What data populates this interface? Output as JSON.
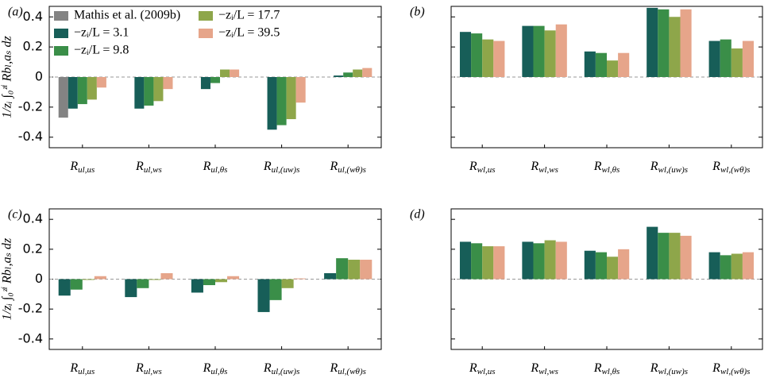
{
  "chart_data": [
    {
      "type": "bar",
      "panel_label": "(a)",
      "y_label": "1/zᵢ ∫₀ᶻⁱ Rbₗ,aₛ dz",
      "legend": "upper left",
      "categories": [
        "Rul,us",
        "Rul,ws",
        "Rul,θs",
        "Rul,(uw)s",
        "Rul,(wθ)s"
      ],
      "series": [
        {
          "name": "Mathis et al. (2009b)",
          "color": "#838383",
          "values": [
            -0.27,
            null,
            null,
            null,
            null
          ]
        },
        {
          "name": "−zᵢ/L = 3.1",
          "color": "#175e58",
          "values": [
            -0.21,
            -0.21,
            -0.08,
            -0.35,
            0.01
          ]
        },
        {
          "name": "−zᵢ/L = 9.8",
          "color": "#3a8e48",
          "values": [
            -0.18,
            -0.19,
            -0.04,
            -0.32,
            0.03
          ]
        },
        {
          "name": "−zᵢ/L = 17.7",
          "color": "#8ea64a",
          "values": [
            -0.15,
            -0.16,
            0.05,
            -0.28,
            0.05
          ]
        },
        {
          "name": "−zᵢ/L = 39.5",
          "color": "#e6a58a",
          "values": [
            -0.07,
            -0.08,
            0.05,
            -0.17,
            0.06
          ]
        }
      ],
      "ylim": [
        -0.47,
        0.47
      ],
      "yticks": [
        -0.4,
        -0.2,
        0,
        0.2,
        0.4
      ],
      "show_ytick_labels": true
    },
    {
      "type": "bar",
      "panel_label": "(b)",
      "categories": [
        "Rwl,us",
        "Rwl,ws",
        "Rwl,θs",
        "Rwl,(uw)s",
        "Rwl,(wθ)s"
      ],
      "series": [
        {
          "color": "#175e58",
          "values": [
            0.3,
            0.34,
            0.17,
            0.46,
            0.24
          ]
        },
        {
          "color": "#3a8e48",
          "values": [
            0.29,
            0.34,
            0.16,
            0.45,
            0.25
          ]
        },
        {
          "color": "#8ea64a",
          "values": [
            0.25,
            0.31,
            0.11,
            0.4,
            0.19
          ]
        },
        {
          "color": "#e6a58a",
          "values": [
            0.24,
            0.35,
            0.16,
            0.45,
            0.24
          ]
        }
      ],
      "ylim": [
        -0.47,
        0.47
      ],
      "yticks": [
        -0.4,
        -0.2,
        0,
        0.2,
        0.4
      ],
      "show_ytick_labels": false
    },
    {
      "type": "bar",
      "panel_label": "(c)",
      "y_label": "1/zᵢ ∫₀ᶻⁱ Rbₗ,aₛ dz",
      "categories": [
        "Rul,us",
        "Rul,ws",
        "Rul,θs",
        "Rul,(uw)s",
        "Rul,(wθ)s"
      ],
      "series": [
        {
          "color": "#175e58",
          "values": [
            -0.11,
            -0.12,
            -0.09,
            -0.22,
            0.04
          ]
        },
        {
          "color": "#3a8e48",
          "values": [
            -0.07,
            -0.06,
            -0.04,
            -0.14,
            0.14
          ]
        },
        {
          "color": "#8ea64a",
          "values": [
            -0.005,
            -0.005,
            -0.02,
            -0.06,
            0.13
          ]
        },
        {
          "color": "#e6a58a",
          "values": [
            0.02,
            0.04,
            0.02,
            0.005,
            0.13
          ]
        }
      ],
      "ylim": [
        -0.47,
        0.47
      ],
      "yticks": [
        -0.4,
        -0.2,
        0,
        0.2,
        0.4
      ],
      "show_ytick_labels": true
    },
    {
      "type": "bar",
      "panel_label": "(d)",
      "categories": [
        "Rwl,us",
        "Rwl,ws",
        "Rwl,θs",
        "Rwl,(uw)s",
        "Rwl,(wθ)s"
      ],
      "series": [
        {
          "color": "#175e58",
          "values": [
            0.25,
            0.25,
            0.19,
            0.35,
            0.18
          ]
        },
        {
          "color": "#3a8e48",
          "values": [
            0.24,
            0.24,
            0.18,
            0.31,
            0.16
          ]
        },
        {
          "color": "#8ea64a",
          "values": [
            0.22,
            0.26,
            0.15,
            0.31,
            0.17
          ]
        },
        {
          "color": "#e6a58a",
          "values": [
            0.22,
            0.25,
            0.2,
            0.29,
            0.18
          ]
        }
      ],
      "ylim": [
        -0.47,
        0.47
      ],
      "yticks": [
        -0.4,
        -0.2,
        0,
        0.2,
        0.4
      ],
      "show_ytick_labels": false
    }
  ]
}
